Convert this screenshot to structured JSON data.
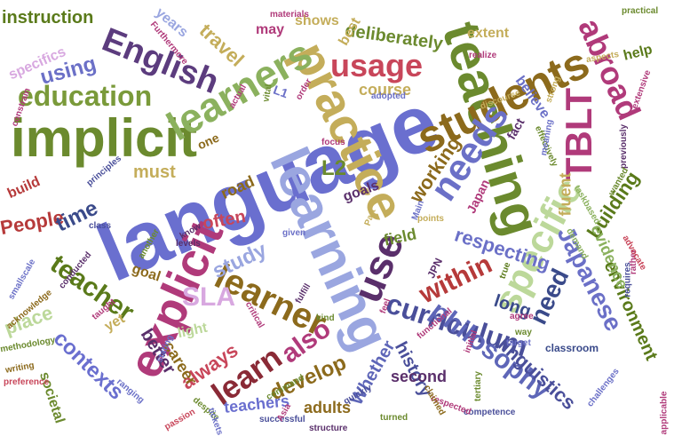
{
  "words": [
    {
      "text": "language",
      "color": "#6a6fcf"
    },
    {
      "text": "learning",
      "color": "#9aa6e0"
    },
    {
      "text": "teaching",
      "color": "#6b8a2e"
    },
    {
      "text": "implicit",
      "color": "#6b8a2e"
    },
    {
      "text": "practice",
      "color": "#c4ad5a"
    },
    {
      "text": "explicit",
      "color": "#b03a7a"
    },
    {
      "text": "students",
      "color": "#8c6a1c"
    },
    {
      "text": "learners",
      "color": "#8bb15e"
    },
    {
      "text": "specific",
      "color": "#bcd89a"
    },
    {
      "text": "use",
      "color": "#5a2f6b"
    },
    {
      "text": "usage",
      "color": "#c8465a"
    },
    {
      "text": "needs",
      "color": "#6b70c7"
    },
    {
      "text": "English",
      "color": "#5c3c7e"
    },
    {
      "text": "education",
      "color": "#7a9a3a"
    },
    {
      "text": "learner",
      "color": "#8c6a1c"
    },
    {
      "text": "TBLT",
      "color": "#b03a7a"
    },
    {
      "text": "abroad",
      "color": "#b03a7a"
    },
    {
      "text": "curriculum",
      "color": "#4a4f9a"
    },
    {
      "text": "philosophy",
      "color": "#5e66b8"
    },
    {
      "text": "Japanese",
      "color": "#6b70c7"
    },
    {
      "text": "teacher",
      "color": "#5a7a1a"
    },
    {
      "text": "learn",
      "color": "#8a2a36"
    },
    {
      "text": "SLA",
      "color": "#d8a8e0"
    },
    {
      "text": "also",
      "color": "#b03a7a"
    },
    {
      "text": "within",
      "color": "#b63a3a"
    },
    {
      "text": "respecting",
      "color": "#6b70c7"
    },
    {
      "text": "study",
      "color": "#9aa6e0"
    },
    {
      "text": "contexts",
      "color": "#6a6fcf"
    },
    {
      "text": "develop",
      "color": "#8c6a1c"
    },
    {
      "text": "travel",
      "color": "#c4ad5a"
    },
    {
      "text": "using",
      "color": "#6b70c7"
    },
    {
      "text": "always",
      "color": "#c8465a"
    },
    {
      "text": "linguistics",
      "color": "#4a4f9a"
    },
    {
      "text": "environment",
      "color": "#5a7a1a"
    },
    {
      "text": "need",
      "color": "#3a4a8a"
    },
    {
      "text": "instruction",
      "color": "#5a7a1a"
    },
    {
      "text": "working",
      "color": "#8c6a1c"
    },
    {
      "text": "building",
      "color": "#5a7a1a"
    },
    {
      "text": "People",
      "color": "#b63a3a"
    },
    {
      "text": "place",
      "color": "#bcd89a"
    },
    {
      "text": "time",
      "color": "#3a4a8a"
    },
    {
      "text": "better",
      "color": "#5a2f6b"
    },
    {
      "text": "teachers",
      "color": "#6a6fcf"
    },
    {
      "text": "career",
      "color": "#8c6a1c"
    },
    {
      "text": "history",
      "color": "#4a4f9a"
    },
    {
      "text": "Whether",
      "color": "#5e66b8"
    },
    {
      "text": "second",
      "color": "#5a2f6b"
    },
    {
      "text": "adults",
      "color": "#8c6a1c"
    },
    {
      "text": "evidence",
      "color": "#8bb15e"
    },
    {
      "text": "deliberately",
      "color": "#6b8a2e"
    },
    {
      "text": "field",
      "color": "#6b8a2e"
    },
    {
      "text": "long",
      "color": "#3a4a8a"
    },
    {
      "text": "fluent",
      "color": "#c4ad5a"
    },
    {
      "text": "must",
      "color": "#c4ad5a"
    },
    {
      "text": "often",
      "color": "#c8465a"
    },
    {
      "text": "road",
      "color": "#8c6a1c"
    },
    {
      "text": "course",
      "color": "#c4ad5a"
    },
    {
      "text": "extent",
      "color": "#c4ad5a"
    },
    {
      "text": "shows",
      "color": "#c4ad5a"
    },
    {
      "text": "years",
      "color": "#9aa6e0"
    },
    {
      "text": "specifics",
      "color": "#d8a8e0"
    },
    {
      "text": "may",
      "color": "#b03a7a"
    },
    {
      "text": "best",
      "color": "#c4ad5a"
    },
    {
      "text": "help",
      "color": "#5a7a1a"
    },
    {
      "text": "believe",
      "color": "#6b70c7"
    },
    {
      "text": "fact",
      "color": "#5a2f6b"
    },
    {
      "text": "goals",
      "color": "#5a2f6b"
    },
    {
      "text": "goal",
      "color": "#8c6a1c"
    },
    {
      "text": "light",
      "color": "#bcd89a"
    },
    {
      "text": "societal",
      "color": "#6b8a2e"
    },
    {
      "text": "build",
      "color": "#b63a3a"
    },
    {
      "text": "yet",
      "color": "#c4ad5a"
    },
    {
      "text": "L2",
      "color": "#6b8a2e"
    },
    {
      "text": "one",
      "color": "#8c6a1c"
    },
    {
      "text": "L1",
      "color": "#6b70c7"
    },
    {
      "text": "Japan",
      "color": "#b03a7a"
    },
    {
      "text": "JPN",
      "color": "#5a2f6b"
    },
    {
      "text": "classroom",
      "color": "#3a4a8a"
    },
    {
      "text": "challenges",
      "color": "#6b70c7"
    },
    {
      "text": "tertiary",
      "color": "#6b8a2e"
    },
    {
      "text": "competence",
      "color": "#4a4f9a"
    },
    {
      "text": "structure",
      "color": "#5a2f6b"
    },
    {
      "text": "successful",
      "color": "#4a4f9a"
    },
    {
      "text": "turned",
      "color": "#6b8a2e"
    },
    {
      "text": "quickly",
      "color": "#4a4f9a"
    },
    {
      "text": "functional",
      "color": "#b03a7a"
    },
    {
      "text": "command",
      "color": "#6b8a2e"
    },
    {
      "text": "requires",
      "color": "#4a4f9a"
    },
    {
      "text": "materials",
      "color": "#b03a7a"
    },
    {
      "text": "practical",
      "color": "#6b8a2e"
    },
    {
      "text": "realize",
      "color": "#b03a7a"
    },
    {
      "text": "adopted",
      "color": "#6b70c7"
    },
    {
      "text": "points",
      "color": "#c4ad5a"
    },
    {
      "text": "focus",
      "color": "#b03a7a"
    },
    {
      "text": "kind",
      "color": "#6b8a2e"
    },
    {
      "text": "way",
      "color": "#6b8a2e"
    },
    {
      "text": "agree",
      "color": "#b03a7a"
    },
    {
      "text": "previously",
      "color": "#5a2f6b"
    },
    {
      "text": "demand",
      "color": "#8bb15e"
    },
    {
      "text": "rather",
      "color": "#b03a7a"
    },
    {
      "text": "writing",
      "color": "#8c6a1c"
    },
    {
      "text": "methodology",
      "color": "#6b8a2e"
    },
    {
      "text": "principles",
      "color": "#4a4f9a"
    },
    {
      "text": "class",
      "color": "#4a4f9a"
    },
    {
      "text": "conducted",
      "color": "#5a2f6b"
    },
    {
      "text": "given",
      "color": "#6b70c7"
    },
    {
      "text": "levels",
      "color": "#5a2f6b"
    },
    {
      "text": "know",
      "color": "#5a2f6b"
    },
    {
      "text": "another",
      "color": "#6b8a2e"
    },
    {
      "text": "stating",
      "color": "#6b70c7"
    },
    {
      "text": "passion",
      "color": "#c8465a"
    },
    {
      "text": "despite",
      "color": "#6b8a2e"
    },
    {
      "text": "tickets",
      "color": "#6b70c7"
    },
    {
      "text": "Main",
      "color": "#6b70c7"
    },
    {
      "text": "Asia",
      "color": "#b03a7a"
    },
    {
      "text": "taught",
      "color": "#b03a7a"
    },
    {
      "text": "ranging",
      "color": "#6b70c7"
    },
    {
      "text": "target",
      "color": "#6b70c7"
    },
    {
      "text": "initial",
      "color": "#b03a7a"
    },
    {
      "text": "true",
      "color": "#5a7a1a"
    },
    {
      "text": "Furthermore",
      "color": "#b03a7a"
    },
    {
      "text": "constrain",
      "color": "#b03a7a"
    },
    {
      "text": "taskbased",
      "color": "#8bb15e"
    },
    {
      "text": "advocate",
      "color": "#c8465a"
    },
    {
      "text": "effectively",
      "color": "#6b8a2e"
    },
    {
      "text": "acknowledge",
      "color": "#8c6a1c"
    },
    {
      "text": "preference",
      "color": "#c8465a"
    },
    {
      "text": "smallscale",
      "color": "#6b70c7"
    },
    {
      "text": "aspects",
      "color": "#c4ad5a"
    },
    {
      "text": "critical",
      "color": "#b03a7a"
    },
    {
      "text": "applicable",
      "color": "#b03a7a"
    },
    {
      "text": "respected",
      "color": "#b03a7a"
    },
    {
      "text": "claimed",
      "color": "#8c6a1c"
    },
    {
      "text": "fulfill",
      "color": "#5a2f6b"
    },
    {
      "text": "Part",
      "color": "#c4ad5a"
    },
    {
      "text": "discourse",
      "color": "#c4ad5a"
    },
    {
      "text": "actual",
      "color": "#b03a7a"
    },
    {
      "text": "order",
      "color": "#b03a7a"
    },
    {
      "text": "vital",
      "color": "#6b8a2e"
    },
    {
      "text": "feel",
      "color": "#b03a7a"
    },
    {
      "text": "wanted",
      "color": "#6b8a2e"
    },
    {
      "text": "meaning",
      "color": "#6b70c7"
    },
    {
      "text": "extensive",
      "color": "#b03a7a"
    },
    {
      "text": "strong",
      "color": "#c4ad5a"
    }
  ]
}
